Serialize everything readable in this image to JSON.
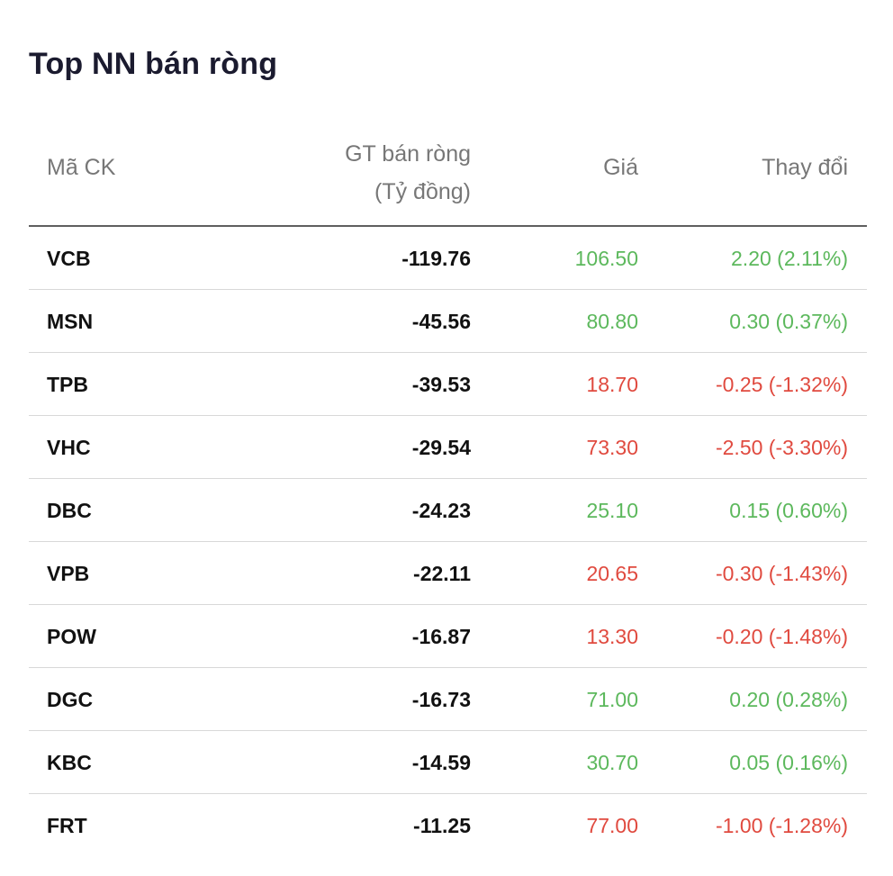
{
  "title": "Top NN bán ròng",
  "colors": {
    "up": "#5cb85c",
    "down": "#e04a3f",
    "header": "#777777",
    "text": "#111111"
  },
  "headers": {
    "code": "Mã CK",
    "value_line1": "GT bán ròng",
    "value_line2": "(Tỷ đồng)",
    "price": "Giá",
    "change": "Thay đổi"
  },
  "rows": [
    {
      "code": "VCB",
      "value": "-119.76",
      "price": "106.50",
      "change": "2.20 (2.11%)",
      "trend": "up"
    },
    {
      "code": "MSN",
      "value": "-45.56",
      "price": "80.80",
      "change": "0.30 (0.37%)",
      "trend": "up"
    },
    {
      "code": "TPB",
      "value": "-39.53",
      "price": "18.70",
      "change": "-0.25 (-1.32%)",
      "trend": "down"
    },
    {
      "code": "VHC",
      "value": "-29.54",
      "price": "73.30",
      "change": "-2.50 (-3.30%)",
      "trend": "down"
    },
    {
      "code": "DBC",
      "value": "-24.23",
      "price": "25.10",
      "change": "0.15 (0.60%)",
      "trend": "up"
    },
    {
      "code": "VPB",
      "value": "-22.11",
      "price": "20.65",
      "change": "-0.30 (-1.43%)",
      "trend": "down"
    },
    {
      "code": "POW",
      "value": "-16.87",
      "price": "13.30",
      "change": "-0.20 (-1.48%)",
      "trend": "down"
    },
    {
      "code": "DGC",
      "value": "-16.73",
      "price": "71.00",
      "change": "0.20 (0.28%)",
      "trend": "up"
    },
    {
      "code": "KBC",
      "value": "-14.59",
      "price": "30.70",
      "change": "0.05 (0.16%)",
      "trend": "up"
    },
    {
      "code": "FRT",
      "value": "-11.25",
      "price": "77.00",
      "change": "-1.00 (-1.28%)",
      "trend": "down"
    }
  ]
}
